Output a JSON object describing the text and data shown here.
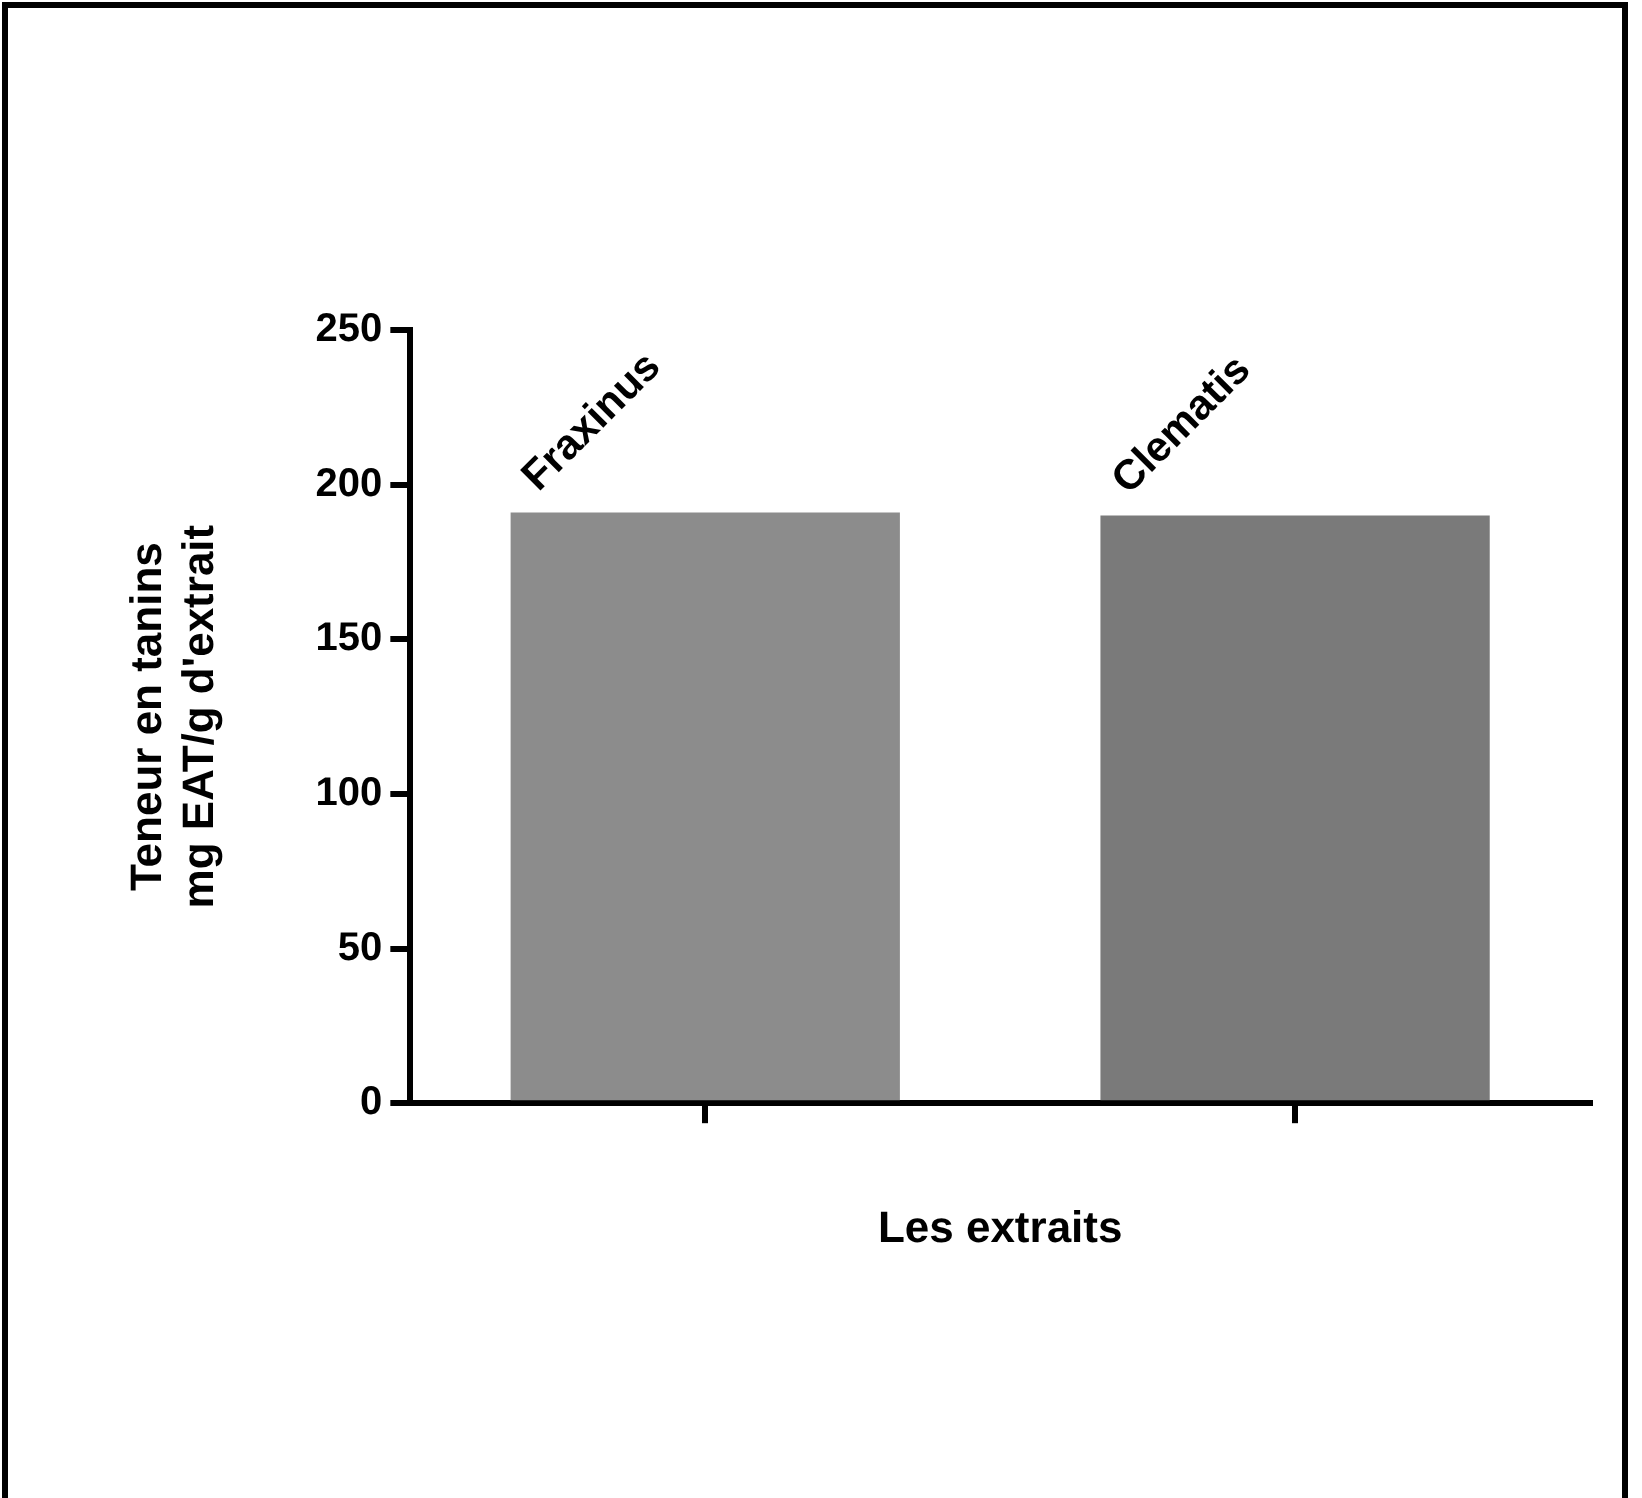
{
  "chart_data": {
    "type": "bar",
    "categories": [
      "Fraxinus",
      "Clematis"
    ],
    "values": [
      191,
      190
    ],
    "colors": [
      "#8c8c8c",
      "#7a7a7a"
    ],
    "xlabel": "Les extraits",
    "ylabel": "Teneur en tanins\nmg EAT/g d'extrait",
    "ylim": [
      0,
      250
    ],
    "yticks": [
      0,
      50,
      100,
      150,
      200,
      250
    ],
    "grid": false,
    "legend": false
  }
}
